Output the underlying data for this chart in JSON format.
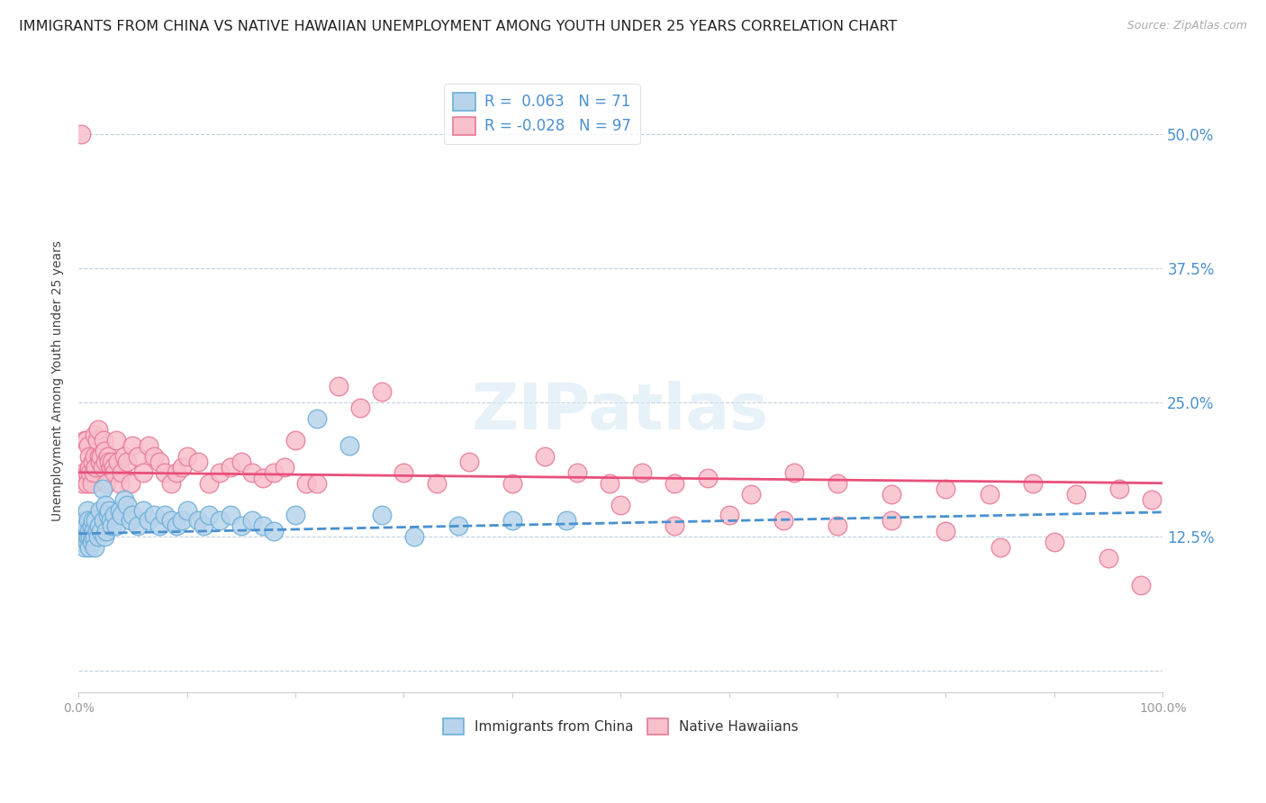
{
  "title": "IMMIGRANTS FROM CHINA VS NATIVE HAWAIIAN UNEMPLOYMENT AMONG YOUTH UNDER 25 YEARS CORRELATION CHART",
  "source": "Source: ZipAtlas.com",
  "ylabel": "Unemployment Among Youth under 25 years",
  "yticks": [
    0.0,
    0.125,
    0.25,
    0.375,
    0.5
  ],
  "ytick_labels": [
    "",
    "12.5%",
    "25.0%",
    "37.5%",
    "50.0%"
  ],
  "xlim": [
    0.0,
    1.0
  ],
  "ylim": [
    -0.02,
    0.56
  ],
  "legend_r_blue": "R =  0.063",
  "legend_n_blue": "N = 71",
  "legend_r_pink": "R = -0.028",
  "legend_n_pink": "N = 97",
  "blue_fill": "#b8d4ec",
  "pink_fill": "#f8c0cc",
  "blue_edge": "#6baed6",
  "pink_edge": "#e87898",
  "blue_trend_color": "#4a90d0",
  "pink_trend_color": "#e8507a",
  "grid_color": "#c0d0e0",
  "title_color": "#222222",
  "axis_color": "#444444",
  "tick_color": "#999999",
  "source_color": "#aaaaaa",
  "legend_text_color": "#4a90d0",
  "background_color": "#ffffff",
  "blue_scatter_x": [
    0.003,
    0.004,
    0.005,
    0.006,
    0.006,
    0.007,
    0.007,
    0.008,
    0.008,
    0.009,
    0.009,
    0.01,
    0.01,
    0.011,
    0.012,
    0.012,
    0.013,
    0.013,
    0.014,
    0.015,
    0.015,
    0.016,
    0.017,
    0.018,
    0.019,
    0.02,
    0.021,
    0.022,
    0.023,
    0.024,
    0.025,
    0.026,
    0.027,
    0.028,
    0.03,
    0.031,
    0.033,
    0.035,
    0.038,
    0.04,
    0.042,
    0.045,
    0.048,
    0.05,
    0.055,
    0.06,
    0.065,
    0.07,
    0.075,
    0.08,
    0.085,
    0.09,
    0.095,
    0.1,
    0.11,
    0.115,
    0.12,
    0.13,
    0.14,
    0.15,
    0.16,
    0.17,
    0.18,
    0.2,
    0.22,
    0.25,
    0.28,
    0.31,
    0.35,
    0.4,
    0.45
  ],
  "blue_scatter_y": [
    0.125,
    0.12,
    0.13,
    0.115,
    0.14,
    0.125,
    0.135,
    0.12,
    0.15,
    0.125,
    0.14,
    0.115,
    0.13,
    0.125,
    0.135,
    0.12,
    0.14,
    0.125,
    0.13,
    0.125,
    0.115,
    0.14,
    0.13,
    0.125,
    0.135,
    0.15,
    0.13,
    0.17,
    0.14,
    0.125,
    0.155,
    0.13,
    0.145,
    0.15,
    0.14,
    0.135,
    0.145,
    0.135,
    0.15,
    0.145,
    0.16,
    0.155,
    0.14,
    0.145,
    0.135,
    0.15,
    0.14,
    0.145,
    0.135,
    0.145,
    0.14,
    0.135,
    0.14,
    0.15,
    0.14,
    0.135,
    0.145,
    0.14,
    0.145,
    0.135,
    0.14,
    0.135,
    0.13,
    0.145,
    0.235,
    0.21,
    0.145,
    0.125,
    0.135,
    0.14,
    0.14
  ],
  "pink_scatter_x": [
    0.002,
    0.004,
    0.005,
    0.006,
    0.007,
    0.008,
    0.008,
    0.009,
    0.01,
    0.01,
    0.011,
    0.012,
    0.013,
    0.014,
    0.015,
    0.015,
    0.016,
    0.017,
    0.018,
    0.019,
    0.02,
    0.021,
    0.022,
    0.023,
    0.024,
    0.025,
    0.026,
    0.027,
    0.028,
    0.03,
    0.031,
    0.032,
    0.033,
    0.035,
    0.036,
    0.038,
    0.04,
    0.042,
    0.045,
    0.048,
    0.05,
    0.055,
    0.06,
    0.065,
    0.07,
    0.075,
    0.08,
    0.085,
    0.09,
    0.095,
    0.1,
    0.11,
    0.12,
    0.13,
    0.14,
    0.15,
    0.16,
    0.17,
    0.18,
    0.19,
    0.2,
    0.21,
    0.22,
    0.24,
    0.26,
    0.28,
    0.3,
    0.33,
    0.36,
    0.4,
    0.43,
    0.46,
    0.49,
    0.52,
    0.55,
    0.58,
    0.62,
    0.66,
    0.7,
    0.75,
    0.8,
    0.84,
    0.88,
    0.92,
    0.96,
    0.99,
    0.5,
    0.55,
    0.6,
    0.65,
    0.7,
    0.75,
    0.8,
    0.85,
    0.9,
    0.95,
    0.98
  ],
  "pink_scatter_y": [
    0.5,
    0.175,
    0.185,
    0.215,
    0.215,
    0.185,
    0.175,
    0.21,
    0.2,
    0.19,
    0.185,
    0.175,
    0.195,
    0.185,
    0.22,
    0.2,
    0.19,
    0.215,
    0.225,
    0.2,
    0.195,
    0.2,
    0.19,
    0.215,
    0.205,
    0.195,
    0.175,
    0.2,
    0.195,
    0.19,
    0.195,
    0.19,
    0.185,
    0.215,
    0.195,
    0.175,
    0.185,
    0.2,
    0.195,
    0.175,
    0.21,
    0.2,
    0.185,
    0.21,
    0.2,
    0.195,
    0.185,
    0.175,
    0.185,
    0.19,
    0.2,
    0.195,
    0.175,
    0.185,
    0.19,
    0.195,
    0.185,
    0.18,
    0.185,
    0.19,
    0.215,
    0.175,
    0.175,
    0.265,
    0.245,
    0.26,
    0.185,
    0.175,
    0.195,
    0.175,
    0.2,
    0.185,
    0.175,
    0.185,
    0.175,
    0.18,
    0.165,
    0.185,
    0.175,
    0.165,
    0.17,
    0.165,
    0.175,
    0.165,
    0.17,
    0.16,
    0.155,
    0.135,
    0.145,
    0.14,
    0.135,
    0.14,
    0.13,
    0.115,
    0.12,
    0.105,
    0.08
  ],
  "blue_trend_x": [
    0.0,
    1.0
  ],
  "blue_trend_y": [
    0.128,
    0.148
  ],
  "pink_trend_x": [
    0.0,
    1.0
  ],
  "pink_trend_y": [
    0.185,
    0.175
  ],
  "title_fontsize": 11.5,
  "source_fontsize": 9,
  "ylabel_fontsize": 10,
  "tick_fontsize": 10,
  "legend_fontsize": 12
}
